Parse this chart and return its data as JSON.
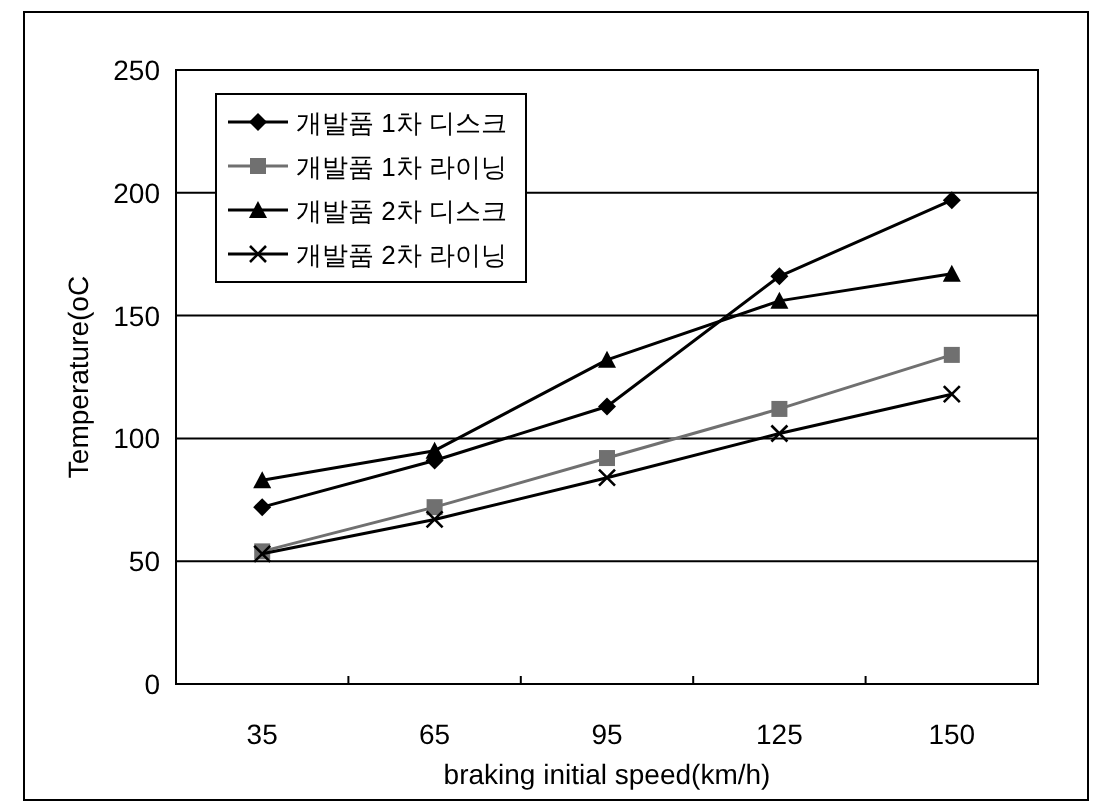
{
  "chart_data": {
    "type": "line",
    "ylabel": "Temperature(oC",
    "xlabel": "braking initial speed(km/h)",
    "categories": [
      "35",
      "65",
      "95",
      "125",
      "150"
    ],
    "series": [
      {
        "name": "개발품 1차 디스크",
        "color": "#000000",
        "marker": "diamond",
        "values": [
          72,
          91,
          113,
          166,
          197
        ]
      },
      {
        "name": "개발품 1차 라이닝",
        "color": "#707070",
        "marker": "square",
        "values": [
          54,
          72,
          92,
          112,
          134
        ]
      },
      {
        "name": "개발품 2차 디스크",
        "color": "#000000",
        "marker": "triangle",
        "values": [
          83,
          95,
          132,
          156,
          167
        ]
      },
      {
        "name": "개발품 2차 라이닝",
        "color": "#000000",
        "marker": "cross",
        "values": [
          53,
          67,
          84,
          102,
          118
        ]
      }
    ],
    "ylim": [
      0,
      250
    ],
    "yticks": [
      0,
      50,
      100,
      150,
      200,
      250
    ],
    "grid": "y",
    "legend": "top left"
  }
}
